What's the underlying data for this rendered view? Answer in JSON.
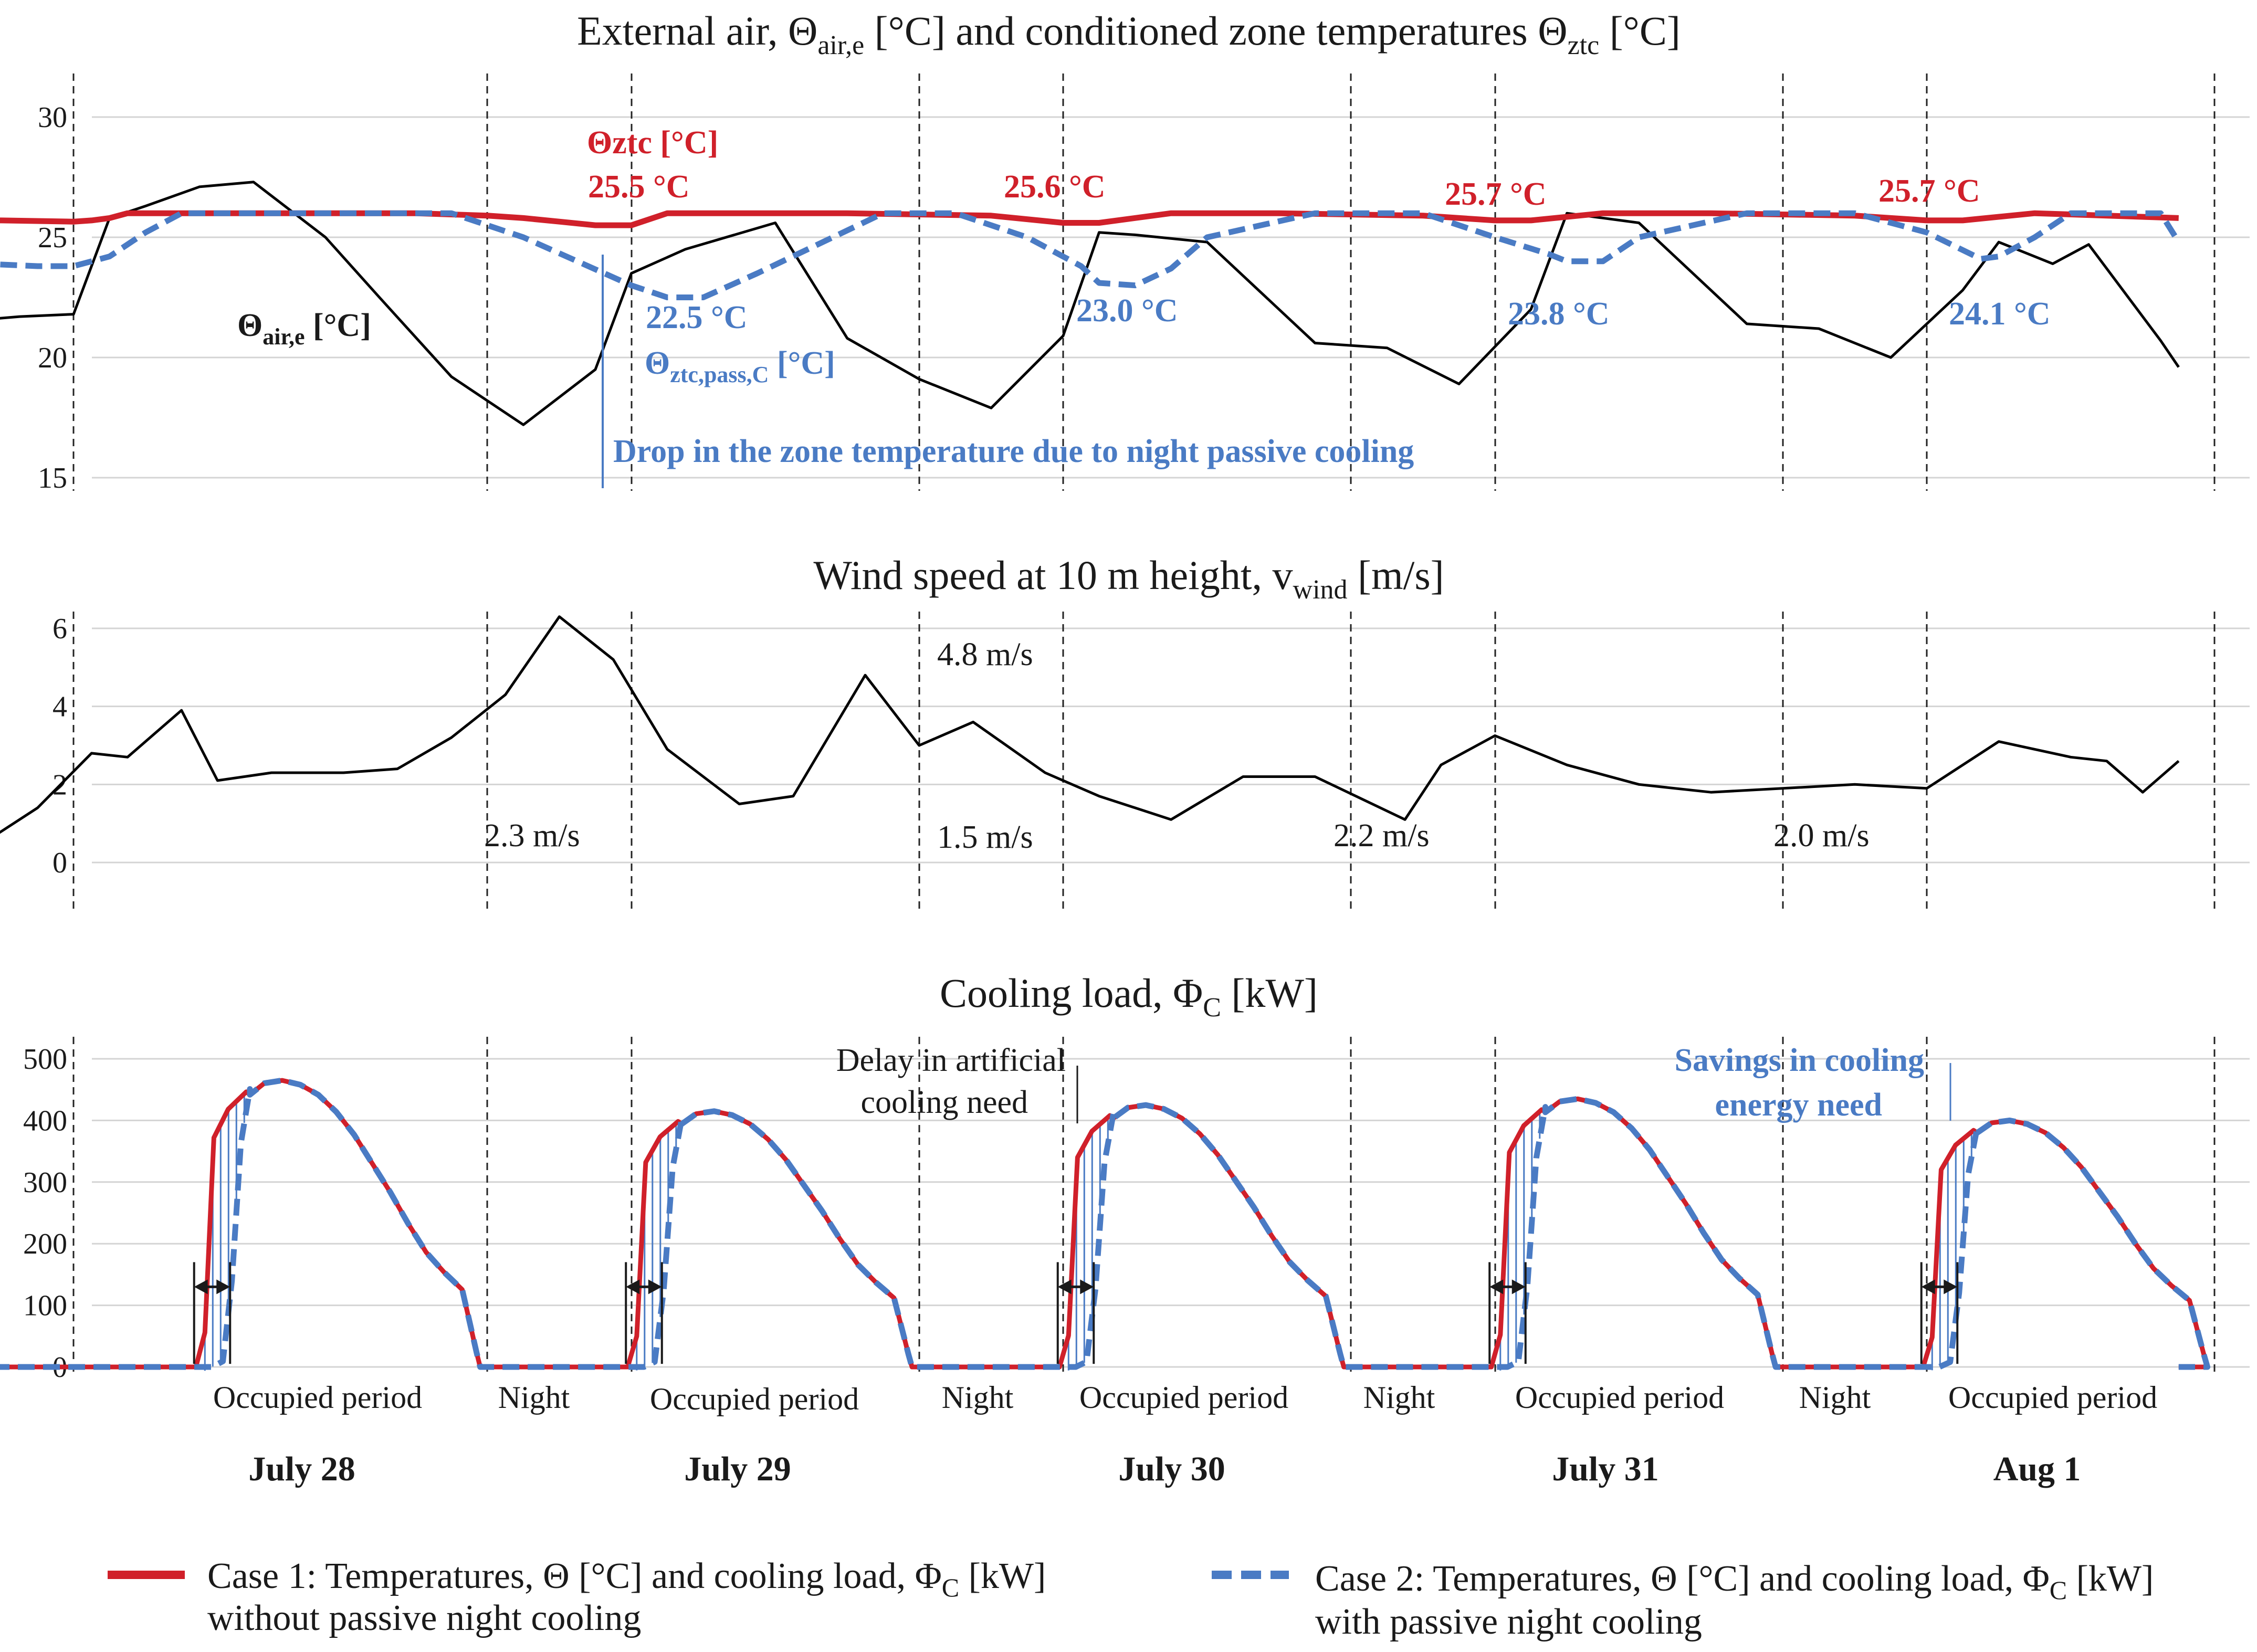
{
  "colors": {
    "case1": "#d0202a",
    "case2": "#4a7bc4",
    "air": "#000000",
    "wind": "#000000"
  },
  "chart_data": [
    {
      "type": "line",
      "title_parts": [
        "External air, Θ",
        "air,e",
        " [°C] and conditioned zone temperatures Θ",
        "ztc",
        " [°C]"
      ],
      "ylim": [
        15,
        30
      ],
      "yticks": [
        15,
        20,
        25,
        30
      ],
      "x_unit": "hours from 00:00 July 28",
      "xlim": [
        -19,
        110
      ],
      "series": [
        {
          "name": "Θztc [°C] (Case 1)",
          "style": "red-solid",
          "x": [
            -18,
            -15,
            -11,
            -7,
            -6,
            -5,
            -4,
            0,
            4,
            8,
            12,
            16,
            18,
            20,
            22,
            24,
            26,
            30,
            36,
            44,
            48,
            50,
            54,
            60,
            68,
            72,
            74,
            78,
            84,
            92,
            96,
            98,
            102,
            110
          ],
          "y": [
            25.8,
            25.75,
            25.7,
            25.65,
            25.7,
            25.8,
            26,
            26,
            26,
            26,
            26,
            25.9,
            25.8,
            25.65,
            25.5,
            25.5,
            26,
            26,
            26,
            25.9,
            25.6,
            25.6,
            26,
            26,
            25.9,
            25.7,
            25.7,
            26,
            26,
            25.9,
            25.7,
            25.7,
            26,
            25.8
          ]
        },
        {
          "name": "Θztc,pass,C [°C] (Case 2)",
          "style": "blue-dash",
          "x": [
            -18,
            -15,
            -12,
            -9,
            -7,
            -5,
            -3,
            -1,
            14,
            18,
            21,
            24,
            26,
            28,
            31,
            38,
            42,
            46,
            49,
            50,
            52,
            54,
            56,
            62,
            68,
            72,
            75,
            76,
            78,
            80,
            86,
            92,
            96,
            99,
            100,
            102,
            104,
            109,
            110
          ],
          "y": [
            24.6,
            24.2,
            23.9,
            23.8,
            23.8,
            24.2,
            25.2,
            26,
            26,
            25,
            24,
            23,
            22.5,
            22.5,
            23.5,
            26,
            26,
            25,
            23.8,
            23.1,
            23.0,
            23.7,
            25,
            26,
            26,
            25,
            24.3,
            24.0,
            24.0,
            25,
            26,
            26,
            25.2,
            24.1,
            24.2,
            25,
            26,
            26,
            24.8
          ]
        },
        {
          "name": "Θair,e [°C]",
          "style": "black-thin",
          "x": [
            -18,
            -10,
            -7,
            -5,
            -3,
            0,
            3,
            7,
            10,
            14,
            18,
            22,
            24,
            27,
            32,
            36,
            40,
            44,
            48,
            50,
            52,
            56,
            62,
            66,
            70,
            74,
            76,
            80,
            86,
            90,
            94,
            98,
            100,
            103,
            105,
            109,
            110
          ],
          "y": [
            21.2,
            21.7,
            21.8,
            25.8,
            26.3,
            27.1,
            27.3,
            25.0,
            22.5,
            19.2,
            17.2,
            19.5,
            23.5,
            24.5,
            25.6,
            20.8,
            19.1,
            17.9,
            20.9,
            25.2,
            25.1,
            24.8,
            20.6,
            20.4,
            18.9,
            22.0,
            26.0,
            25.6,
            21.4,
            21.2,
            20.0,
            22.8,
            24.8,
            23.9,
            24.7,
            20.7,
            19.6
          ]
        }
      ],
      "annotations": {
        "ztc_label": "Θztc [°C]",
        "air_label_main": "Θ",
        "air_label_sub": "air,e",
        "air_label_unit": " [°C]",
        "pass_label_main": "Θ",
        "pass_label_sub": "ztc,pass,C",
        "pass_label_unit": " [°C]",
        "red_values": [
          "25.5 °C",
          "25.6 °C",
          "25.7 °C",
          "25.7 °C"
        ],
        "blue_values": [
          "22.5 °C",
          "23.0 °C",
          "23.8 °C",
          "24.1 °C"
        ],
        "drop_note": "Drop in the zone temperature due to night passive cooling"
      }
    },
    {
      "type": "line",
      "title_parts": [
        "Wind speed at 10 m height, v",
        "wind",
        " [m/s]"
      ],
      "ylim": [
        0,
        6.5
      ],
      "yticks": [
        0,
        2,
        4,
        6
      ],
      "x_unit": "hours from 00:00 July 28",
      "series": [
        {
          "name": "vwind [m/s]",
          "x": [
            -18,
            -17,
            -15,
            -12,
            -9,
            -6,
            -4,
            -1,
            1,
            4,
            8,
            11,
            14,
            17,
            20,
            23,
            26,
            30,
            33,
            37,
            40,
            43,
            47,
            50,
            54,
            58,
            62,
            67,
            69,
            72,
            76,
            80,
            84,
            88,
            92,
            96,
            100,
            104,
            106,
            108,
            110
          ],
          "y": [
            1.1,
            0.6,
            0.55,
            0.5,
            1.4,
            2.8,
            2.7,
            3.9,
            2.1,
            2.3,
            2.3,
            2.4,
            3.2,
            4.3,
            6.3,
            5.2,
            2.9,
            1.5,
            1.7,
            4.8,
            3.0,
            3.6,
            2.3,
            1.7,
            1.1,
            2.2,
            2.2,
            1.1,
            2.5,
            3.25,
            2.5,
            2.0,
            1.8,
            1.9,
            2.0,
            1.9,
            3.1,
            2.7,
            2.6,
            1.8,
            2.6
          ]
        }
      ],
      "annotations": [
        "2.3 m/s",
        "4.8 m/s",
        "1.5 m/s",
        "2.2 m/s",
        "2.0 m/s"
      ]
    },
    {
      "type": "line",
      "title_parts": [
        "Cooling load, Φ",
        "C",
        " [kW]"
      ],
      "ylim": [
        0,
        500
      ],
      "yticks": [
        0,
        100,
        200,
        300,
        400,
        500
      ],
      "x_unit": "hours from 00:00 July 28",
      "day_peaks": [
        465,
        415,
        425,
        435,
        400
      ],
      "series": [
        {
          "name": "ΦC [kW] (Case 1)",
          "style": "red-solid"
        },
        {
          "name": "ΦC [kW] (Case 2)",
          "style": "blue-dash"
        }
      ],
      "annotations": {
        "delay_note_line1": "Delay in artificial",
        "delay_note_line2": "cooling need",
        "savings_line1": "Savings in cooling",
        "savings_line2": "energy need"
      }
    }
  ],
  "periods": {
    "occupied": "Occupied period",
    "night": "Night"
  },
  "days": [
    "July 28",
    "July 29",
    "July 30",
    "July 31",
    "Aug 1"
  ],
  "legend": {
    "case1_line1_a": "Case 1: Temperatures, Θ [°C] and cooling load, Φ",
    "case1_line1_sub": "C",
    "case1_line1_b": " [kW]",
    "case1_line2": "without passive night cooling",
    "case2_line1_a": "Case 2: Temperatures, Θ [°C] and cooling load, Φ",
    "case2_line1_sub": "C",
    "case2_line1_b": " [kW]",
    "case2_line2": "with passive night cooling"
  }
}
